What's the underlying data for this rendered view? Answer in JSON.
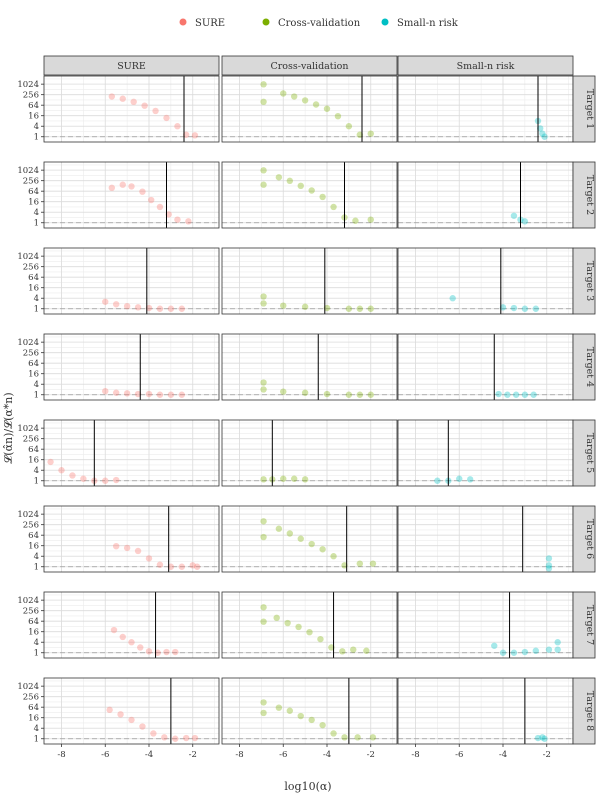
{
  "chart_data": {
    "type": "scatter",
    "legend_position": "top",
    "x_axis_label": "log10(α)",
    "y_axis_label": "𝓛(α̂n)/𝓛(α*n)",
    "y_scale": "log2",
    "x_ticks": [
      -8,
      -6,
      -4,
      -2
    ],
    "y_ticks": [
      1,
      4,
      16,
      64,
      256,
      1024
    ],
    "y_tick_labels": [
      "1",
      "4",
      "16",
      "64",
      "256",
      "1024"
    ],
    "x_tick_labels": [
      "-8",
      "-6",
      "-4",
      "-2"
    ],
    "xlim": [
      -8.8,
      -0.8
    ],
    "ylim": [
      0.5,
      3000
    ],
    "reference_line": {
      "y": 1,
      "style": "dashed"
    },
    "grid": true,
    "columns": [
      "SURE",
      "Cross-validation",
      "Small-n risk"
    ],
    "rows": [
      "Target 1",
      "Target 2",
      "Target 3",
      "Target 4",
      "Target 5",
      "Target 6",
      "Target 7",
      "Target 8"
    ],
    "series": [
      {
        "name": "SURE",
        "color": "#F8766D"
      },
      {
        "name": "Cross-validation",
        "color": "#7CAE00"
      },
      {
        "name": "Small-n risk",
        "color": "#00BFC4"
      }
    ],
    "optimal_log10_alpha": [
      -2.4,
      -3.2,
      -4.1,
      -4.4,
      -6.5,
      -3.1,
      -3.7,
      -3.0
    ],
    "panels": [
      [
        {
          "x": [
            -5.7,
            -5.2,
            -4.7,
            -4.2,
            -3.7,
            -3.2,
            -2.7,
            -2.3,
            -1.9
          ],
          "y": [
            200,
            150,
            100,
            60,
            30,
            12,
            4,
            1.3,
            1.2
          ]
        },
        {
          "x": [
            -6.9,
            -6.9,
            -6.0,
            -5.5,
            -5.0,
            -4.5,
            -4.0,
            -3.5,
            -3.0,
            -2.5,
            -2.0
          ],
          "y": [
            1000,
            100,
            300,
            200,
            120,
            70,
            40,
            15,
            4,
            1.3,
            1.5
          ]
        },
        {
          "x": [
            -2.4,
            -2.3,
            -2.2,
            -2.1
          ],
          "y": [
            8,
            3,
            1.5,
            1.0
          ]
        }
      ],
      [
        {
          "x": [
            -5.7,
            -5.2,
            -4.8,
            -4.3,
            -3.9,
            -3.5,
            -3.1,
            -2.7,
            -2.2
          ],
          "y": [
            100,
            150,
            120,
            60,
            20,
            8,
            3,
            1.5,
            1.2
          ]
        },
        {
          "x": [
            -6.9,
            -6.9,
            -6.2,
            -5.7,
            -5.2,
            -4.7,
            -4.2,
            -3.7,
            -3.2,
            -2.7,
            -2.0
          ],
          "y": [
            1000,
            150,
            400,
            250,
            130,
            70,
            30,
            8,
            2,
            1.3,
            1.5
          ]
        },
        {
          "x": [
            -3.5,
            -3.2,
            -3.0
          ],
          "y": [
            2.5,
            1.5,
            1.2
          ]
        }
      ],
      [
        {
          "x": [
            -6.0,
            -5.5,
            -5.0,
            -4.5,
            -4.0,
            -3.5,
            -3.0,
            -2.5
          ],
          "y": [
            2.5,
            1.8,
            1.4,
            1.2,
            1.1,
            1.0,
            1.0,
            1.0
          ]
        },
        {
          "x": [
            -6.9,
            -6.9,
            -6.0,
            -5.0,
            -4.0,
            -3.0,
            -2.5,
            -2.0
          ],
          "y": [
            5,
            2,
            1.5,
            1.3,
            1.1,
            1.0,
            1.0,
            1.0
          ]
        },
        {
          "x": [
            -6.3,
            -4.0,
            -3.5,
            -3.0,
            -2.5
          ],
          "y": [
            4,
            1.2,
            1.1,
            1.0,
            1.0
          ]
        }
      ],
      [
        {
          "x": [
            -6.0,
            -5.5,
            -5.0,
            -4.5,
            -4.0,
            -3.5,
            -3.0,
            -2.5
          ],
          "y": [
            1.6,
            1.3,
            1.2,
            1.1,
            1.1,
            1.0,
            1.0,
            1.0
          ]
        },
        {
          "x": [
            -6.9,
            -6.9,
            -6.0,
            -5.0,
            -4.0,
            -3.0,
            -2.5,
            -2.0
          ],
          "y": [
            5,
            2,
            1.5,
            1.3,
            1.1,
            1.0,
            1.0,
            1.0
          ]
        },
        {
          "x": [
            -4.2,
            -3.8,
            -3.4,
            -3.0,
            -2.6
          ],
          "y": [
            1.1,
            1.0,
            1.0,
            1.0,
            1.0
          ]
        }
      ],
      [
        {
          "x": [
            -8.5,
            -8.0,
            -7.5,
            -7.0,
            -6.5,
            -6.0,
            -5.5
          ],
          "y": [
            12,
            4,
            2,
            1.3,
            1.0,
            1.0,
            1.1
          ]
        },
        {
          "x": [
            -6.9,
            -6.5,
            -6.0,
            -5.5,
            -5.0
          ],
          "y": [
            1.2,
            1.2,
            1.3,
            1.3,
            1.2
          ]
        },
        {
          "x": [
            -7.0,
            -6.5,
            -6.0,
            -5.5
          ],
          "y": [
            1.0,
            1.0,
            1.3,
            1.2
          ]
        }
      ],
      [
        {
          "x": [
            -5.5,
            -5.0,
            -4.5,
            -4.0,
            -3.5,
            -3.0,
            -2.5,
            -2.0,
            -1.8
          ],
          "y": [
            15,
            12,
            8,
            3,
            1.3,
            1.0,
            1.0,
            1.2,
            1.0
          ]
        },
        {
          "x": [
            -6.9,
            -6.9,
            -6.2,
            -5.7,
            -5.2,
            -4.7,
            -4.2,
            -3.7,
            -3.2,
            -2.5,
            -1.9
          ],
          "y": [
            400,
            50,
            150,
            80,
            40,
            20,
            10,
            4,
            1.2,
            1.5,
            1.5
          ]
        },
        {
          "x": [
            -1.9,
            -1.9,
            -1.9
          ],
          "y": [
            3,
            1.2,
            0.8
          ]
        }
      ],
      [
        {
          "x": [
            -5.6,
            -5.2,
            -4.8,
            -4.4,
            -4.0,
            -3.6,
            -3.2,
            -2.8
          ],
          "y": [
            20,
            8,
            4,
            2,
            1.2,
            1.0,
            1.1,
            1.1
          ]
        },
        {
          "x": [
            -6.9,
            -6.9,
            -6.3,
            -5.8,
            -5.3,
            -4.8,
            -4.3,
            -3.8,
            -3.3,
            -2.8,
            -2.2
          ],
          "y": [
            400,
            60,
            100,
            50,
            30,
            15,
            6,
            2,
            1.2,
            1.5,
            1.3
          ]
        },
        {
          "x": [
            -4.4,
            -4.0,
            -3.5,
            -3.0,
            -2.5,
            -1.9,
            -1.5,
            -1.5
          ],
          "y": [
            2.5,
            1.0,
            1.0,
            1.1,
            1.3,
            1.5,
            4,
            1.5
          ]
        }
      ],
      [
        {
          "x": [
            -5.8,
            -5.3,
            -4.8,
            -4.3,
            -3.8,
            -3.3,
            -2.8,
            -2.3,
            -1.9
          ],
          "y": [
            45,
            25,
            12,
            5,
            2,
            1.2,
            1.0,
            1.1,
            1.1
          ]
        },
        {
          "x": [
            -6.9,
            -6.9,
            -6.2,
            -5.7,
            -5.2,
            -4.7,
            -4.2,
            -3.7,
            -3.2,
            -2.6,
            -1.9
          ],
          "y": [
            120,
            30,
            60,
            40,
            20,
            12,
            6,
            2,
            1.2,
            1.2,
            1.2
          ]
        },
        {
          "x": [
            -2.4,
            -2.2,
            -2.1
          ],
          "y": [
            1.1,
            1.2,
            1.0
          ]
        }
      ]
    ]
  }
}
